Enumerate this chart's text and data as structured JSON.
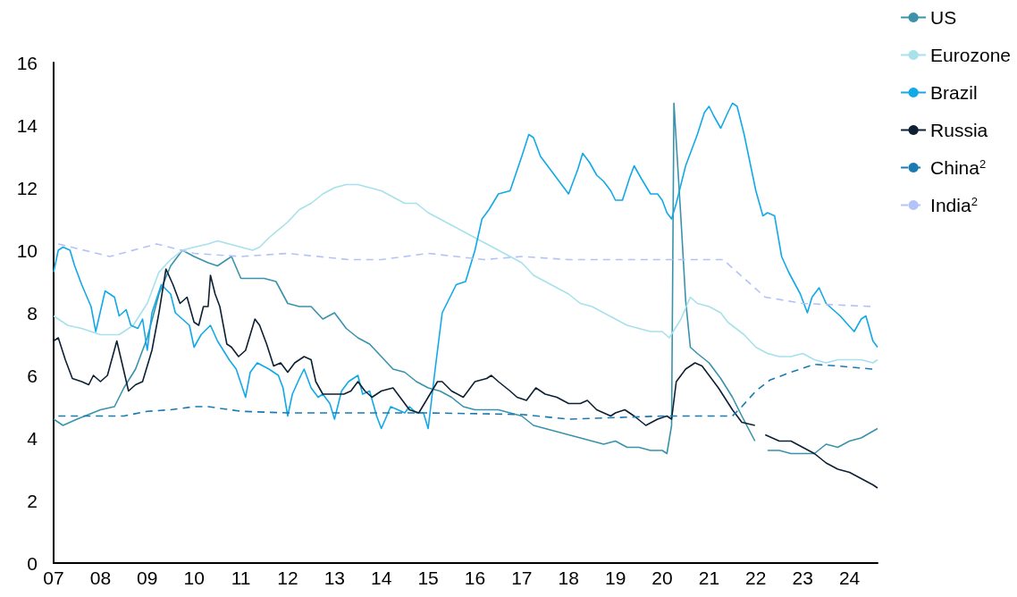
{
  "chart_data": {
    "type": "line",
    "legend": "top right",
    "grid": false,
    "marker": "none",
    "xlim": [
      2007,
      2024.6
    ],
    "xticks": [
      {
        "value": 2007,
        "label": "07"
      },
      {
        "value": 2008,
        "label": "08"
      },
      {
        "value": 2009,
        "label": "09"
      },
      {
        "value": 2010,
        "label": "10"
      },
      {
        "value": 2011,
        "label": "11"
      },
      {
        "value": 2012,
        "label": "12"
      },
      {
        "value": 2013,
        "label": "13"
      },
      {
        "value": 2014,
        "label": "14"
      },
      {
        "value": 2015,
        "label": "15"
      },
      {
        "value": 2016,
        "label": "16"
      },
      {
        "value": 2017,
        "label": "17"
      },
      {
        "value": 2018,
        "label": "18"
      },
      {
        "value": 2019,
        "label": "19"
      },
      {
        "value": 2020,
        "label": "20"
      },
      {
        "value": 2021,
        "label": "21"
      },
      {
        "value": 2022,
        "label": "22"
      },
      {
        "value": 2023,
        "label": "23"
      },
      {
        "value": 2024,
        "label": "24"
      }
    ],
    "ylim": [
      0,
      16
    ],
    "yticks": [
      0,
      2,
      4,
      6,
      8,
      10,
      12,
      14,
      16
    ],
    "series": [
      {
        "name": "US",
        "color": "#3a93ab",
        "line_style": "solid",
        "x": [
          2007,
          2007.2,
          2007.5,
          2008,
          2008.3,
          2008.5,
          2008.75,
          2009,
          2009.25,
          2009.5,
          2009.75,
          2010,
          2010.3,
          2010.5,
          2010.8,
          2011,
          2011.5,
          2011.75,
          2012,
          2012.25,
          2012.5,
          2012.75,
          2013,
          2013.25,
          2013.5,
          2013.75,
          2014,
          2014.25,
          2014.5,
          2014.75,
          2015,
          2015.25,
          2015.5,
          2015.75,
          2016,
          2016.5,
          2016.75,
          2017,
          2017.25,
          2017.5,
          2017.75,
          2018,
          2018.5,
          2018.75,
          2019,
          2019.25,
          2019.5,
          2019.75,
          2020,
          2020.1,
          2020.2,
          2020.25,
          2020.4,
          2020.5,
          2020.6,
          2020.75,
          2021,
          2021.25,
          2021.5,
          2021.7,
          2021.98,
          2022.1,
          2022.25,
          2022.5,
          2022.75,
          2023,
          2023.25,
          2023.5,
          2023.75,
          2024,
          2024.25,
          2024.6
        ],
        "values": [
          4.6,
          4.4,
          4.6,
          4.9,
          5.0,
          5.6,
          6.2,
          7.2,
          8.6,
          9.5,
          10.0,
          9.8,
          9.6,
          9.5,
          9.8,
          9.1,
          9.1,
          9.0,
          8.3,
          8.2,
          8.2,
          7.8,
          8.0,
          7.5,
          7.2,
          7.0,
          6.6,
          6.2,
          6.1,
          5.8,
          5.6,
          5.5,
          5.3,
          5.0,
          4.9,
          4.9,
          4.8,
          4.7,
          4.4,
          4.3,
          4.2,
          4.1,
          3.9,
          3.8,
          3.9,
          3.7,
          3.7,
          3.6,
          3.6,
          3.5,
          4.4,
          14.7,
          11.0,
          8.4,
          6.9,
          6.7,
          6.4,
          5.9,
          5.3,
          4.7,
          3.9,
          null,
          3.6,
          3.6,
          3.5,
          3.5,
          3.5,
          3.8,
          3.7,
          3.9,
          4.0,
          4.3
        ]
      },
      {
        "name": "Eurozone",
        "color": "#a6e1ec",
        "line_style": "solid",
        "x": [
          2007,
          2007.3,
          2007.6,
          2008,
          2008.4,
          2008.7,
          2009,
          2009.25,
          2009.5,
          2009.75,
          2010,
          2010.3,
          2010.5,
          2010.75,
          2011,
          2011.25,
          2011.4,
          2011.6,
          2012,
          2012.25,
          2012.5,
          2012.75,
          2013,
          2013.25,
          2013.5,
          2013.75,
          2014,
          2014.25,
          2014.5,
          2014.75,
          2015,
          2015.25,
          2015.5,
          2015.75,
          2016,
          2016.25,
          2016.5,
          2016.75,
          2017,
          2017.25,
          2017.5,
          2017.75,
          2018,
          2018.25,
          2018.5,
          2018.75,
          2019,
          2019.25,
          2019.5,
          2019.75,
          2020,
          2020.15,
          2020.4,
          2020.6,
          2020.75,
          2021,
          2021.25,
          2021.4,
          2021.75,
          2022,
          2022.25,
          2022.5,
          2022.75,
          2023,
          2023.25,
          2023.5,
          2023.75,
          2024,
          2024.25,
          2024.5,
          2024.6
        ],
        "values": [
          7.9,
          7.6,
          7.5,
          7.3,
          7.3,
          7.6,
          8.3,
          9.3,
          9.7,
          10.0,
          10.1,
          10.2,
          10.3,
          10.2,
          10.1,
          10.0,
          10.1,
          10.4,
          10.9,
          11.3,
          11.5,
          11.8,
          12.0,
          12.1,
          12.1,
          12.0,
          11.9,
          11.7,
          11.5,
          11.5,
          11.2,
          11.0,
          10.8,
          10.6,
          10.4,
          10.2,
          10.0,
          9.8,
          9.6,
          9.2,
          9.0,
          8.8,
          8.6,
          8.3,
          8.2,
          8.0,
          7.8,
          7.6,
          7.5,
          7.4,
          7.4,
          7.2,
          7.8,
          8.5,
          8.3,
          8.2,
          8.0,
          7.7,
          7.3,
          6.9,
          6.7,
          6.6,
          6.6,
          6.7,
          6.5,
          6.4,
          6.5,
          6.5,
          6.5,
          6.4,
          6.5
        ]
      },
      {
        "name": "Brazil",
        "color": "#12a9e8",
        "line_style": "solid",
        "x": [
          2007,
          2007.1,
          2007.2,
          2007.35,
          2007.45,
          2007.6,
          2007.8,
          2007.9,
          2008.1,
          2008.3,
          2008.4,
          2008.55,
          2008.65,
          2008.8,
          2008.9,
          2009,
          2009.1,
          2009.3,
          2009.5,
          2009.6,
          2009.75,
          2009.9,
          2010,
          2010.15,
          2010.35,
          2010.5,
          2010.75,
          2010.9,
          2011.1,
          2011.2,
          2011.35,
          2011.6,
          2011.8,
          2011.9,
          2012,
          2012.1,
          2012.25,
          2012.35,
          2012.5,
          2012.65,
          2012.75,
          2012.9,
          2013,
          2013.15,
          2013.3,
          2013.5,
          2013.6,
          2013.75,
          2013.9,
          2014,
          2014.2,
          2014.35,
          2014.5,
          2014.6,
          2014.75,
          2014.9,
          2015,
          2015.15,
          2015.3,
          2015.5,
          2015.6,
          2015.8,
          2016,
          2016.15,
          2016.3,
          2016.5,
          2016.75,
          2017,
          2017.15,
          2017.25,
          2017.4,
          2017.6,
          2017.75,
          2018,
          2018.2,
          2018.3,
          2018.45,
          2018.6,
          2018.75,
          2018.9,
          2019,
          2019.15,
          2019.3,
          2019.4,
          2019.55,
          2019.75,
          2019.9,
          2020,
          2020.1,
          2020.2,
          2020.3,
          2020.5,
          2020.75,
          2020.9,
          2021,
          2021.1,
          2021.25,
          2021.4,
          2021.5,
          2021.6,
          2021.75,
          2022,
          2022.15,
          2022.25,
          2022.4,
          2022.55,
          2022.7,
          2022.95,
          2023.1,
          2023.2,
          2023.35,
          2023.5,
          2023.8,
          2024.1,
          2024.25,
          2024.35,
          2024.5,
          2024.6
        ],
        "values": [
          9.3,
          10.0,
          10.1,
          10.0,
          9.5,
          8.9,
          8.2,
          7.4,
          8.7,
          8.5,
          7.9,
          8.1,
          7.6,
          7.5,
          7.8,
          6.8,
          8.0,
          8.9,
          8.6,
          8.0,
          7.8,
          7.6,
          6.9,
          7.3,
          7.6,
          7.1,
          6.5,
          6.2,
          5.3,
          6.1,
          6.4,
          6.2,
          6.0,
          5.6,
          4.7,
          5.4,
          5.9,
          6.2,
          5.6,
          5.3,
          5.4,
          5.1,
          4.6,
          5.5,
          5.8,
          6.0,
          5.4,
          5.5,
          4.7,
          4.3,
          5.0,
          4.9,
          4.8,
          5.0,
          4.8,
          4.8,
          4.3,
          6.2,
          8.0,
          8.6,
          8.9,
          9.0,
          10.0,
          11.0,
          11.3,
          11.8,
          11.9,
          13.0,
          13.7,
          13.6,
          13.0,
          12.6,
          12.3,
          11.8,
          12.6,
          13.1,
          12.8,
          12.4,
          12.2,
          11.9,
          11.6,
          11.6,
          12.3,
          12.7,
          12.3,
          11.8,
          11.8,
          11.6,
          11.2,
          11.0,
          11.5,
          12.7,
          13.7,
          14.4,
          14.6,
          14.3,
          13.9,
          14.4,
          14.7,
          14.6,
          13.7,
          11.9,
          11.1,
          11.2,
          11.1,
          9.8,
          9.3,
          8.6,
          8.0,
          8.5,
          8.8,
          8.3,
          7.9,
          7.4,
          7.8,
          7.9,
          7.1,
          6.9
        ]
      },
      {
        "name": "Russia",
        "color": "#0e2033",
        "line_style": "solid",
        "x": [
          2007,
          2007.1,
          2007.25,
          2007.4,
          2007.6,
          2007.75,
          2007.85,
          2008,
          2008.15,
          2008.35,
          2008.6,
          2008.75,
          2008.9,
          2009.1,
          2009.25,
          2009.4,
          2009.55,
          2009.7,
          2009.85,
          2010,
          2010.1,
          2010.2,
          2010.3,
          2010.35,
          2010.45,
          2010.55,
          2010.7,
          2010.8,
          2010.95,
          2011.1,
          2011.3,
          2011.4,
          2011.55,
          2011.7,
          2011.85,
          2012,
          2012.15,
          2012.35,
          2012.5,
          2012.6,
          2012.75,
          2013,
          2013.2,
          2013.35,
          2013.5,
          2013.65,
          2013.8,
          2014,
          2014.25,
          2014.45,
          2014.6,
          2014.8,
          2015,
          2015.2,
          2015.3,
          2015.5,
          2015.75,
          2016,
          2016.25,
          2016.35,
          2016.5,
          2016.75,
          2016.9,
          2017.1,
          2017.3,
          2017.5,
          2017.75,
          2018,
          2018.25,
          2018.4,
          2018.6,
          2018.9,
          2019,
          2019.2,
          2019.4,
          2019.65,
          2019.9,
          2020.1,
          2020.2,
          2020.3,
          2020.5,
          2020.7,
          2020.85,
          2021,
          2021.2,
          2021.5,
          2021.7,
          2021.98,
          2022.1,
          2022.2,
          2022.5,
          2022.75,
          2023,
          2023.25,
          2023.5,
          2023.75,
          2024,
          2024.25,
          2024.5,
          2024.6
        ],
        "values": [
          7.1,
          7.2,
          6.5,
          5.9,
          5.8,
          5.7,
          6.0,
          5.8,
          6.0,
          7.1,
          5.5,
          5.7,
          5.8,
          6.8,
          8.0,
          9.4,
          8.9,
          8.3,
          8.5,
          7.7,
          7.6,
          8.2,
          8.2,
          9.2,
          8.6,
          8.2,
          7.0,
          6.9,
          6.6,
          6.8,
          7.8,
          7.6,
          7.0,
          6.3,
          6.4,
          6.1,
          6.4,
          6.6,
          6.5,
          5.8,
          5.4,
          5.4,
          5.4,
          5.5,
          5.8,
          5.5,
          5.3,
          5.5,
          5.6,
          5.2,
          4.9,
          4.8,
          5.3,
          5.8,
          5.8,
          5.5,
          5.3,
          5.8,
          5.9,
          6.0,
          5.8,
          5.5,
          5.3,
          5.2,
          5.6,
          5.4,
          5.3,
          5.1,
          5.1,
          5.2,
          4.9,
          4.7,
          4.8,
          4.9,
          4.7,
          4.4,
          4.6,
          4.7,
          4.6,
          5.8,
          6.2,
          6.4,
          6.3,
          6.0,
          5.6,
          4.9,
          4.5,
          4.4,
          null,
          4.1,
          3.9,
          3.9,
          3.7,
          3.5,
          3.2,
          3.0,
          2.9,
          2.7,
          2.5,
          2.4
        ]
      },
      {
        "name": "China$^{2}$",
        "color": "#1a7bb3",
        "line_style": "dashed",
        "x": [
          2007.1,
          2008,
          2008.5,
          2009,
          2009.5,
          2010,
          2010.3,
          2011,
          2012,
          2015,
          2017,
          2018,
          2019,
          2020,
          2021.5,
          2021.7,
          2022,
          2022.3,
          2022.75,
          2023.25,
          2023.75,
          2024.5
        ],
        "values": [
          4.7,
          4.7,
          4.7,
          4.85,
          4.9,
          5.0,
          5.0,
          4.85,
          4.8,
          4.8,
          4.75,
          4.6,
          4.65,
          4.7,
          4.7,
          5.0,
          5.5,
          5.85,
          6.1,
          6.35,
          6.3,
          6.2
        ]
      },
      {
        "name": "India$^{2}$",
        "color": "#b3c2f7",
        "line_style": "dashed",
        "x": [
          2007.1,
          2008.2,
          2009.2,
          2010,
          2011,
          2012,
          2013.3,
          2014,
          2015,
          2016.2,
          2017,
          2018,
          2019,
          2020,
          2021.3,
          2022.2,
          2023,
          2024.5
        ],
        "values": [
          10.2,
          9.8,
          10.2,
          9.9,
          9.8,
          9.9,
          9.7,
          9.7,
          9.9,
          9.7,
          9.8,
          9.7,
          9.7,
          9.7,
          9.7,
          8.5,
          8.3,
          8.2
        ]
      }
    ]
  }
}
